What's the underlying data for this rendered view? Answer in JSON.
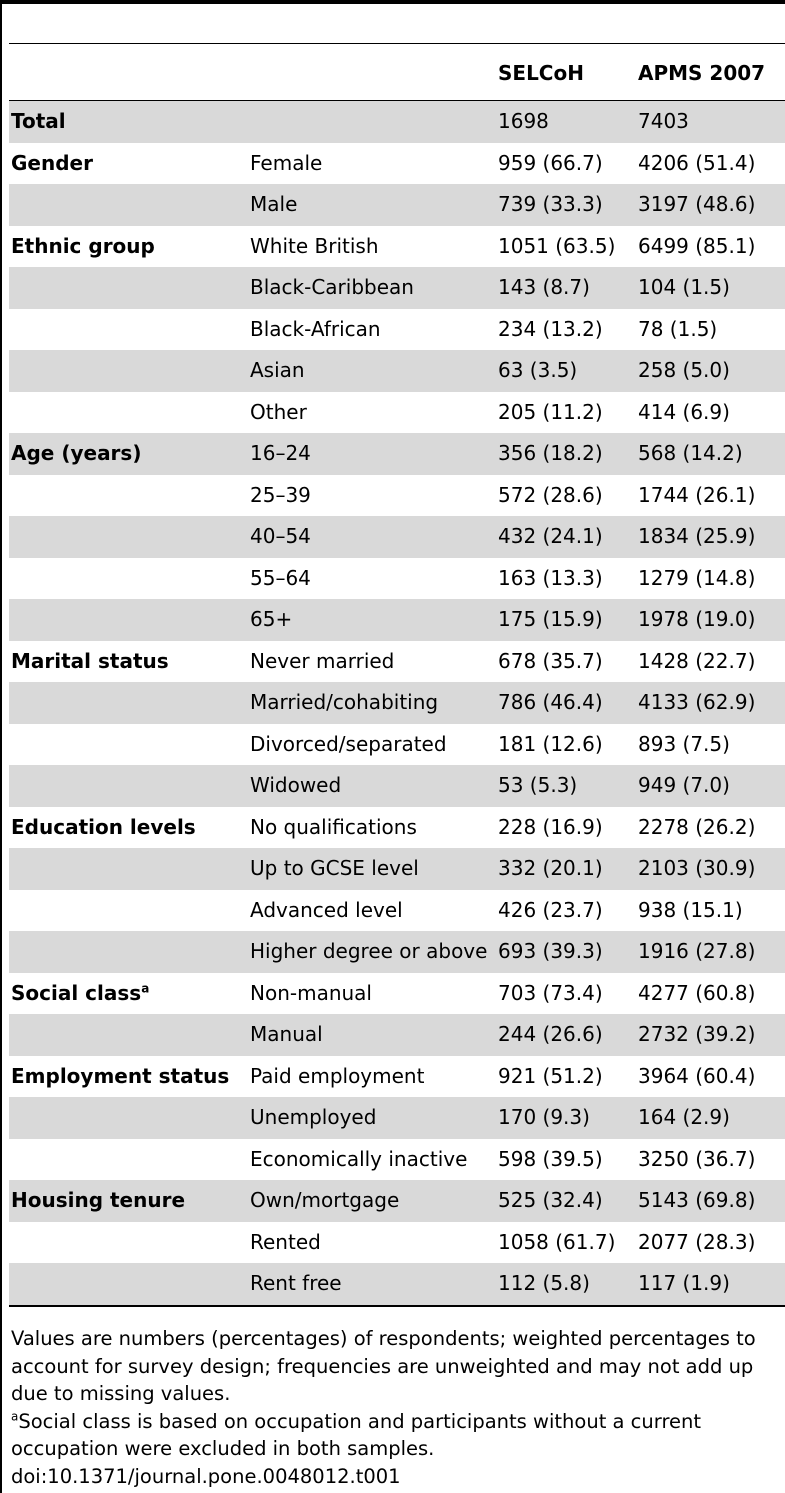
{
  "columns": {
    "selcoh": "SELCoH",
    "apms": "APMS 2007"
  },
  "rows": [
    {
      "group": "Total",
      "group_sup": "",
      "category": "",
      "selcoh": "1698",
      "apms": "7403",
      "shaded": true
    },
    {
      "group": "Gender",
      "group_sup": "",
      "category": "Female",
      "selcoh": "959 (66.7)",
      "apms": "4206 (51.4)",
      "shaded": false
    },
    {
      "group": "",
      "group_sup": "",
      "category": "Male",
      "selcoh": "739 (33.3)",
      "apms": "3197 (48.6)",
      "shaded": true
    },
    {
      "group": "Ethnic group",
      "group_sup": "",
      "category": "White British",
      "selcoh": "1051 (63.5)",
      "apms": "6499 (85.1)",
      "shaded": false
    },
    {
      "group": "",
      "group_sup": "",
      "category": "Black-Caribbean",
      "selcoh": "143 (8.7)",
      "apms": "104 (1.5)",
      "shaded": true
    },
    {
      "group": "",
      "group_sup": "",
      "category": "Black-African",
      "selcoh": "234 (13.2)",
      "apms": "78 (1.5)",
      "shaded": false
    },
    {
      "group": "",
      "group_sup": "",
      "category": "Asian",
      "selcoh": "63 (3.5)",
      "apms": "258 (5.0)",
      "shaded": true
    },
    {
      "group": "",
      "group_sup": "",
      "category": "Other",
      "selcoh": "205 (11.2)",
      "apms": "414 (6.9)",
      "shaded": false
    },
    {
      "group": "Age (years)",
      "group_sup": "",
      "category": "16–24",
      "selcoh": "356 (18.2)",
      "apms": "568 (14.2)",
      "shaded": true
    },
    {
      "group": "",
      "group_sup": "",
      "category": "25–39",
      "selcoh": "572 (28.6)",
      "apms": "1744 (26.1)",
      "shaded": false
    },
    {
      "group": "",
      "group_sup": "",
      "category": "40–54",
      "selcoh": "432 (24.1)",
      "apms": "1834 (25.9)",
      "shaded": true
    },
    {
      "group": "",
      "group_sup": "",
      "category": "55–64",
      "selcoh": "163 (13.3)",
      "apms": "1279 (14.8)",
      "shaded": false
    },
    {
      "group": "",
      "group_sup": "",
      "category": "65+",
      "selcoh": "175 (15.9)",
      "apms": "1978 (19.0)",
      "shaded": true
    },
    {
      "group": "Marital status",
      "group_sup": "",
      "category": "Never married",
      "selcoh": "678 (35.7)",
      "apms": "1428 (22.7)",
      "shaded": false
    },
    {
      "group": "",
      "group_sup": "",
      "category": "Married/cohabiting",
      "selcoh": "786 (46.4)",
      "apms": "4133 (62.9)",
      "shaded": true
    },
    {
      "group": "",
      "group_sup": "",
      "category": "Divorced/separated",
      "selcoh": "181 (12.6)",
      "apms": "893 (7.5)",
      "shaded": false
    },
    {
      "group": "",
      "group_sup": "",
      "category": "Widowed",
      "selcoh": "53 (5.3)",
      "apms": "949 (7.0)",
      "shaded": true
    },
    {
      "group": "Education levels",
      "group_sup": "",
      "category": "No qualifications",
      "selcoh": "228 (16.9)",
      "apms": "2278 (26.2)",
      "shaded": false
    },
    {
      "group": "",
      "group_sup": "",
      "category": "Up to GCSE level",
      "selcoh": "332 (20.1)",
      "apms": "2103 (30.9)",
      "shaded": true
    },
    {
      "group": "",
      "group_sup": "",
      "category": "Advanced level",
      "selcoh": "426 (23.7)",
      "apms": "938 (15.1)",
      "shaded": false
    },
    {
      "group": "",
      "group_sup": "",
      "category": "Higher degree or above",
      "selcoh": "693 (39.3)",
      "apms": "1916 (27.8)",
      "shaded": true
    },
    {
      "group": "Social class",
      "group_sup": "a",
      "category": "Non-manual",
      "selcoh": "703 (73.4)",
      "apms": "4277 (60.8)",
      "shaded": false
    },
    {
      "group": "",
      "group_sup": "",
      "category": "Manual",
      "selcoh": "244 (26.6)",
      "apms": "2732 (39.2)",
      "shaded": true
    },
    {
      "group": "Employment status",
      "group_sup": "",
      "category": "Paid employment",
      "selcoh": "921 (51.2)",
      "apms": "3964 (60.4)",
      "shaded": false
    },
    {
      "group": "",
      "group_sup": "",
      "category": "Unemployed",
      "selcoh": "170 (9.3)",
      "apms": "164 (2.9)",
      "shaded": true
    },
    {
      "group": "",
      "group_sup": "",
      "category": "Economically inactive",
      "selcoh": "598 (39.5)",
      "apms": "3250 (36.7)",
      "shaded": false
    },
    {
      "group": "Housing tenure",
      "group_sup": "",
      "category": "Own/mortgage",
      "selcoh": "525 (32.4)",
      "apms": "5143 (69.8)",
      "shaded": true
    },
    {
      "group": "",
      "group_sup": "",
      "category": "Rented",
      "selcoh": "1058 (61.7)",
      "apms": "2077 (28.3)",
      "shaded": false
    },
    {
      "group": "",
      "group_sup": "",
      "category": "Rent free",
      "selcoh": "112 (5.8)",
      "apms": "117 (1.9)",
      "shaded": true
    }
  ],
  "notes": {
    "values_note": "Values are numbers (percentages) of respondents; weighted percentages to account for survey design; frequencies are unweighted and may not add up due to missing values.",
    "footnote_marker": "a",
    "footnote_text": "Social class is based on occupation and participants without a current occupation were excluded in both samples.",
    "doi": "doi:10.1371/journal.pone.0048012.t001"
  }
}
